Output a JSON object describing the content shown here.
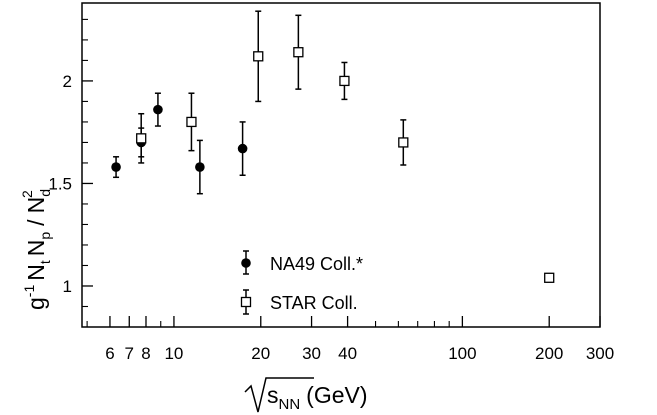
{
  "chart_data": {
    "type": "scatter",
    "title": "",
    "xlabel": {
      "prefix": "(",
      "s_symbol": "s",
      "subscript": "NN",
      "suffix": "(GeV)"
    },
    "ylabel": {
      "g": "g",
      "g_exp": "-1",
      "Nt": "N",
      "Nt_sub": "t",
      "Np": "N",
      "Np_sub": "p",
      "slash": "/",
      "Nd": "N",
      "Nd_sub": "d",
      "Nd_exp": "2"
    },
    "x_scale": "log",
    "xlim": [
      4.8,
      300
    ],
    "ylim": [
      0.8,
      2.38
    ],
    "x_tick_labels": [
      {
        "value": 6,
        "label": "6"
      },
      {
        "value": 7,
        "label": "7"
      },
      {
        "value": 8,
        "label": "8"
      },
      {
        "value": 10,
        "label": "10"
      },
      {
        "value": 20,
        "label": "20"
      },
      {
        "value": 30,
        "label": "30"
      },
      {
        "value": 40,
        "label": "40"
      },
      {
        "value": 100,
        "label": "100"
      },
      {
        "value": 200,
        "label": "200"
      },
      {
        "value": 300,
        "label": "300"
      }
    ],
    "x_minor_ticks": [
      5,
      9,
      50,
      60,
      70,
      80,
      90
    ],
    "y_tick_labels": [
      {
        "value": 1,
        "label": "1"
      },
      {
        "value": 1.5,
        "label": "1.5"
      },
      {
        "value": 2,
        "label": "2"
      }
    ],
    "grid": false,
    "legend_position": "bottom-center",
    "series": [
      {
        "name": "NA49 Coll.*",
        "marker": "filled-circle",
        "color": "#000000",
        "points": [
          {
            "x": 6.3,
            "y": 1.58,
            "err": 0.05
          },
          {
            "x": 7.7,
            "y": 1.7,
            "err": 0.07
          },
          {
            "x": 8.8,
            "y": 1.86,
            "err": 0.08
          },
          {
            "x": 12.3,
            "y": 1.58,
            "err": 0.13
          },
          {
            "x": 17.3,
            "y": 1.67,
            "err": 0.13
          }
        ]
      },
      {
        "name": "STAR Coll.",
        "marker": "open-square",
        "color": "#000000",
        "points": [
          {
            "x": 7.7,
            "y": 1.72,
            "err": 0.12
          },
          {
            "x": 11.5,
            "y": 1.8,
            "err": 0.14
          },
          {
            "x": 19.6,
            "y": 2.12,
            "err": 0.22
          },
          {
            "x": 27.0,
            "y": 2.14,
            "err": 0.18
          },
          {
            "x": 39.0,
            "y": 2.0,
            "err": 0.09
          },
          {
            "x": 62.4,
            "y": 1.7,
            "err": 0.11
          },
          {
            "x": 200.0,
            "y": 1.04,
            "err": 0.02
          }
        ]
      }
    ]
  }
}
